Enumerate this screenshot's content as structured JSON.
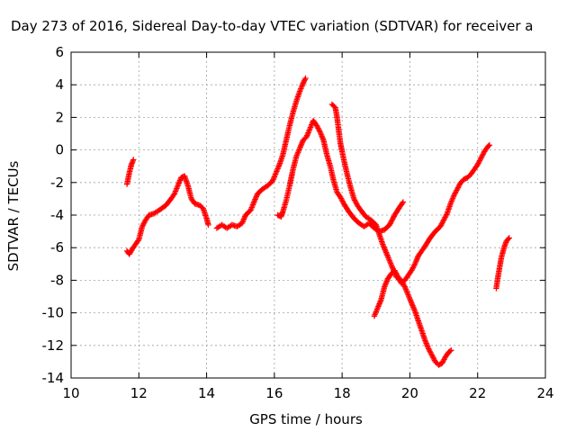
{
  "chart_data": {
    "type": "scatter",
    "title": "Day 273 of 2016, Sidereal Day-to-day VTEC variation (SDTVAR) for receiver a",
    "xlabel": "GPS time / hours",
    "ylabel": "SDTVAR / TECUs",
    "xlim": [
      10,
      24
    ],
    "ylim": [
      -14,
      6
    ],
    "xticks": [
      "10",
      "12",
      "14",
      "16",
      "18",
      "20",
      "22",
      "24"
    ],
    "yticks": [
      "-14",
      "-12",
      "-10",
      "-8",
      "-6",
      "-4",
      "-2",
      "0",
      "2",
      "4",
      "6"
    ],
    "grid": true,
    "marker": "+",
    "series": [
      {
        "color": "#ff0000",
        "points": [
          [
            11.65,
            -2.1
          ],
          [
            11.72,
            -1.4
          ],
          [
            11.78,
            -0.9
          ],
          [
            11.84,
            -0.6
          ]
        ]
      },
      {
        "color": "#ff0000",
        "points": [
          [
            11.65,
            -6.2
          ],
          [
            11.72,
            -6.4
          ],
          [
            11.8,
            -6.1
          ],
          [
            11.9,
            -5.8
          ],
          [
            12.0,
            -5.5
          ],
          [
            12.1,
            -4.7
          ],
          [
            12.2,
            -4.3
          ],
          [
            12.3,
            -4.0
          ],
          [
            12.45,
            -3.9
          ],
          [
            12.6,
            -3.7
          ],
          [
            12.8,
            -3.4
          ],
          [
            12.95,
            -3.0
          ],
          [
            13.05,
            -2.7
          ],
          [
            13.15,
            -2.2
          ],
          [
            13.25,
            -1.7
          ],
          [
            13.35,
            -1.6
          ],
          [
            13.45,
            -2.2
          ],
          [
            13.55,
            -3.0
          ],
          [
            13.65,
            -3.3
          ],
          [
            13.8,
            -3.4
          ],
          [
            13.9,
            -3.6
          ],
          [
            14.0,
            -4.2
          ],
          [
            14.05,
            -4.6
          ]
        ]
      },
      {
        "color": "#ff0000",
        "points": [
          [
            14.3,
            -4.8
          ],
          [
            14.45,
            -4.6
          ],
          [
            14.6,
            -4.8
          ],
          [
            14.75,
            -4.6
          ],
          [
            14.9,
            -4.7
          ],
          [
            15.05,
            -4.5
          ],
          [
            15.15,
            -4.0
          ],
          [
            15.3,
            -3.7
          ],
          [
            15.4,
            -3.2
          ],
          [
            15.5,
            -2.7
          ],
          [
            15.65,
            -2.4
          ],
          [
            15.8,
            -2.2
          ],
          [
            15.95,
            -1.9
          ],
          [
            16.05,
            -1.4
          ],
          [
            16.15,
            -0.9
          ],
          [
            16.25,
            -0.3
          ],
          [
            16.35,
            0.6
          ],
          [
            16.45,
            1.5
          ],
          [
            16.55,
            2.3
          ],
          [
            16.65,
            3.0
          ],
          [
            16.75,
            3.6
          ],
          [
            16.85,
            4.1
          ],
          [
            16.92,
            4.4
          ]
        ]
      },
      {
        "color": "#ff0000",
        "points": [
          [
            16.1,
            -4.0
          ],
          [
            16.2,
            -4.1
          ],
          [
            16.25,
            -3.8
          ],
          [
            16.35,
            -3.1
          ],
          [
            16.45,
            -2.2
          ],
          [
            16.55,
            -1.2
          ],
          [
            16.65,
            -0.4
          ],
          [
            16.75,
            0.1
          ],
          [
            16.85,
            0.6
          ],
          [
            16.95,
            0.8
          ],
          [
            17.05,
            1.3
          ],
          [
            17.15,
            1.8
          ],
          [
            17.25,
            1.5
          ],
          [
            17.35,
            1.1
          ],
          [
            17.45,
            0.6
          ],
          [
            17.55,
            -0.3
          ],
          [
            17.65,
            -1.0
          ],
          [
            17.75,
            -1.9
          ],
          [
            17.85,
            -2.6
          ],
          [
            17.95,
            -2.9
          ],
          [
            18.05,
            -3.3
          ],
          [
            18.2,
            -3.8
          ],
          [
            18.35,
            -4.2
          ],
          [
            18.5,
            -4.5
          ],
          [
            18.65,
            -4.7
          ],
          [
            18.8,
            -4.5
          ],
          [
            18.95,
            -4.8
          ],
          [
            19.1,
            -5.0
          ],
          [
            19.25,
            -4.9
          ],
          [
            19.4,
            -4.6
          ],
          [
            19.55,
            -4.0
          ],
          [
            19.7,
            -3.5
          ],
          [
            19.8,
            -3.2
          ]
        ]
      },
      {
        "color": "#ff0000",
        "points": [
          [
            17.7,
            2.8
          ],
          [
            17.8,
            2.6
          ],
          [
            17.85,
            2.0
          ],
          [
            17.9,
            1.2
          ],
          [
            17.95,
            0.4
          ],
          [
            18.05,
            -0.6
          ],
          [
            18.15,
            -1.5
          ],
          [
            18.25,
            -2.3
          ],
          [
            18.35,
            -3.0
          ],
          [
            18.45,
            -3.4
          ],
          [
            18.55,
            -3.7
          ],
          [
            18.7,
            -4.1
          ],
          [
            18.85,
            -4.3
          ],
          [
            19.0,
            -4.6
          ],
          [
            19.1,
            -5.2
          ],
          [
            19.2,
            -5.8
          ],
          [
            19.3,
            -6.3
          ],
          [
            19.4,
            -6.8
          ],
          [
            19.5,
            -7.3
          ],
          [
            19.6,
            -7.8
          ],
          [
            19.75,
            -8.0
          ],
          [
            19.85,
            -8.4
          ],
          [
            19.95,
            -8.9
          ],
          [
            20.05,
            -9.4
          ],
          [
            20.15,
            -9.9
          ],
          [
            20.25,
            -10.5
          ],
          [
            20.35,
            -11.1
          ],
          [
            20.45,
            -11.7
          ],
          [
            20.55,
            -12.2
          ],
          [
            20.65,
            -12.6
          ],
          [
            20.75,
            -13.0
          ],
          [
            20.85,
            -13.2
          ],
          [
            20.95,
            -13.1
          ],
          [
            21.05,
            -12.7
          ],
          [
            21.15,
            -12.4
          ],
          [
            21.22,
            -12.3
          ]
        ]
      },
      {
        "color": "#ff0000",
        "points": [
          [
            18.95,
            -10.2
          ],
          [
            19.05,
            -9.7
          ],
          [
            19.15,
            -9.2
          ],
          [
            19.25,
            -8.4
          ],
          [
            19.35,
            -7.9
          ],
          [
            19.45,
            -7.6
          ],
          [
            19.55,
            -7.4
          ],
          [
            19.65,
            -7.8
          ],
          [
            19.75,
            -8.2
          ],
          [
            19.85,
            -8.0
          ],
          [
            19.95,
            -7.7
          ],
          [
            20.05,
            -7.4
          ],
          [
            20.15,
            -7.0
          ],
          [
            20.25,
            -6.5
          ],
          [
            20.35,
            -6.2
          ],
          [
            20.45,
            -5.9
          ],
          [
            20.6,
            -5.4
          ],
          [
            20.75,
            -5.0
          ],
          [
            20.9,
            -4.7
          ],
          [
            21.0,
            -4.3
          ],
          [
            21.1,
            -3.9
          ],
          [
            21.2,
            -3.3
          ],
          [
            21.3,
            -2.8
          ],
          [
            21.4,
            -2.4
          ],
          [
            21.5,
            -2.0
          ],
          [
            21.6,
            -1.8
          ],
          [
            21.7,
            -1.7
          ],
          [
            21.8,
            -1.5
          ],
          [
            21.9,
            -1.2
          ],
          [
            22.0,
            -0.9
          ],
          [
            22.1,
            -0.5
          ],
          [
            22.2,
            -0.1
          ],
          [
            22.3,
            0.2
          ],
          [
            22.35,
            0.3
          ]
        ]
      },
      {
        "color": "#ff0000",
        "points": [
          [
            22.55,
            -8.5
          ],
          [
            22.6,
            -7.8
          ],
          [
            22.65,
            -7.2
          ],
          [
            22.7,
            -6.6
          ],
          [
            22.78,
            -6.0
          ],
          [
            22.85,
            -5.6
          ],
          [
            22.93,
            -5.4
          ]
        ]
      }
    ]
  }
}
